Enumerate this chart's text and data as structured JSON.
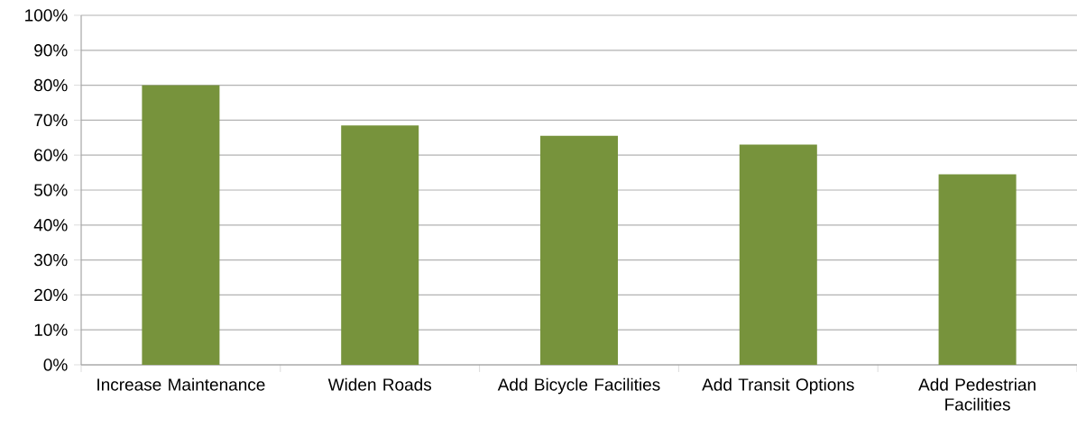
{
  "chart_data": {
    "type": "bar",
    "categories": [
      "Increase Maintenance",
      "Widen Roads",
      "Add Bicycle Facilities",
      "Add Transit Options",
      "Add Pedestrian Facilities"
    ],
    "values": [
      80,
      68.5,
      65.5,
      63,
      54.5
    ],
    "color": "#77933c",
    "ylim": [
      0,
      100
    ],
    "yticks": [
      {
        "value": 0,
        "label": "0%"
      },
      {
        "value": 10,
        "label": "10%"
      },
      {
        "value": 20,
        "label": "20%"
      },
      {
        "value": 30,
        "label": "30%"
      },
      {
        "value": 40,
        "label": "40%"
      },
      {
        "value": 50,
        "label": "50%"
      },
      {
        "value": 60,
        "label": "60%"
      },
      {
        "value": 70,
        "label": "70%"
      },
      {
        "value": 80,
        "label": "80%"
      },
      {
        "value": 90,
        "label": "90%"
      },
      {
        "value": 100,
        "label": "100%"
      }
    ],
    "grid": "y"
  }
}
